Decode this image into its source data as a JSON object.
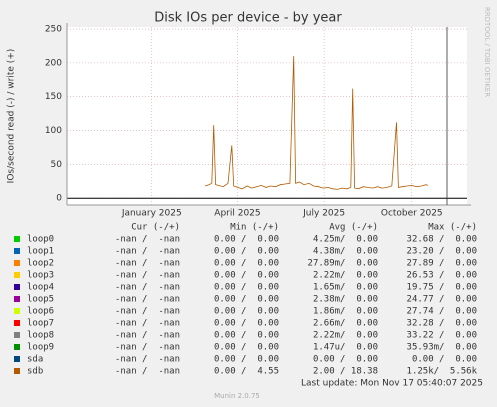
{
  "chart_data": {
    "type": "line",
    "title": "Disk IOs per device - by year",
    "y_label": "IOs/second read (-) / write (+)",
    "watermark": "RRDTOOL / TOBI OETIKER",
    "xlim": [
      -89,
      331
    ],
    "xticks": [
      {
        "value": 0,
        "label": "January 2025"
      },
      {
        "value": 90,
        "label": "April 2025"
      },
      {
        "value": 181,
        "label": "July 2025"
      },
      {
        "value": 273,
        "label": "October 2025"
      }
    ],
    "ylim": [
      -10,
      253
    ],
    "yticks": [
      0,
      50,
      100,
      150,
      200,
      250
    ],
    "grid": true,
    "columns": [
      "Cur (-/+)",
      "Min (-/+)",
      "Avg (-/+)",
      "Max (-/+)"
    ],
    "series": [
      {
        "name": "loop0",
        "color": "#00cc00",
        "cur": "-nan /  -nan",
        "min": "0.00 /  0.00",
        "avg": "4.25m/  0.00",
        "max": "32.68 /  0.00"
      },
      {
        "name": "loop1",
        "color": "#0066b3",
        "cur": "-nan /  -nan",
        "min": "0.00 /  0.00",
        "avg": "4.38m/  0.00",
        "max": "23.20 /  0.00"
      },
      {
        "name": "loop2",
        "color": "#ff8000",
        "cur": "-nan /  -nan",
        "min": "0.00 /  0.00",
        "avg": "27.89m/  0.00",
        "max": "27.89 /  0.00"
      },
      {
        "name": "loop3",
        "color": "#ffcc00",
        "cur": "-nan /  -nan",
        "min": "0.00 /  0.00",
        "avg": "2.22m/  0.00",
        "max": "26.53 /  0.00"
      },
      {
        "name": "loop4",
        "color": "#330099",
        "cur": "-nan /  -nan",
        "min": "0.00 /  0.00",
        "avg": "1.65m/  0.00",
        "max": "19.75 /  0.00"
      },
      {
        "name": "loop5",
        "color": "#990099",
        "cur": "-nan /  -nan",
        "min": "0.00 /  0.00",
        "avg": "2.38m/  0.00",
        "max": "24.77 /  0.00"
      },
      {
        "name": "loop6",
        "color": "#ccff00",
        "cur": "-nan /  -nan",
        "min": "0.00 /  0.00",
        "avg": "1.86m/  0.00",
        "max": "27.74 /  0.00"
      },
      {
        "name": "loop7",
        "color": "#ff0000",
        "cur": "-nan /  -nan",
        "min": "0.00 /  0.00",
        "avg": "2.66m/  0.00",
        "max": "32.28 /  0.00"
      },
      {
        "name": "loop8",
        "color": "#808080",
        "cur": "-nan /  -nan",
        "min": "0.00 /  0.00",
        "avg": "2.22m/  0.00",
        "max": "33.22 /  0.00"
      },
      {
        "name": "loop9",
        "color": "#008f00",
        "cur": "-nan /  -nan",
        "min": "0.00 /  0.00",
        "avg": "1.47u/  0.00",
        "max": "35.93m/  0.00"
      },
      {
        "name": "sda",
        "color": "#00487d",
        "cur": "-nan /  -nan",
        "min": "0.00 /  0.00",
        "avg": "0.00 /  0.00",
        "max": "0.00 /  0.00"
      },
      {
        "name": "sdb",
        "color": "#b35a00",
        "cur": "-nan /  -nan",
        "min": "0.00 /  4.55",
        "avg": "2.00 / 18.38",
        "max": "1.25k/  5.56k",
        "x": [
          56,
          60,
          63,
          65,
          67,
          70,
          75,
          80,
          84,
          86,
          90,
          95,
          100,
          105,
          110,
          115,
          120,
          125,
          130,
          135,
          140,
          145,
          149,
          151,
          155,
          160,
          165,
          170,
          175,
          180,
          185,
          190,
          195,
          200,
          205,
          209,
          211,
          213,
          217,
          222,
          227,
          232,
          237,
          242,
          247,
          252,
          257,
          259,
          263,
          268,
          273,
          278,
          283,
          288,
          290
        ],
        "values": [
          18,
          20,
          22,
          108,
          20,
          19,
          17,
          22,
          78,
          18,
          16,
          14,
          18,
          15,
          17,
          19,
          16,
          18,
          17,
          20,
          21,
          22,
          210,
          22,
          24,
          20,
          22,
          18,
          17,
          15,
          16,
          14,
          13,
          15,
          14,
          16,
          162,
          15,
          14,
          17,
          16,
          15,
          17,
          15,
          16,
          18,
          112,
          16,
          17,
          18,
          19,
          17,
          18,
          20,
          19
        ]
      }
    ],
    "last_update": "Last update: Mon Nov 17 05:40:07 2025",
    "footer": "Munin 2.0.75"
  }
}
